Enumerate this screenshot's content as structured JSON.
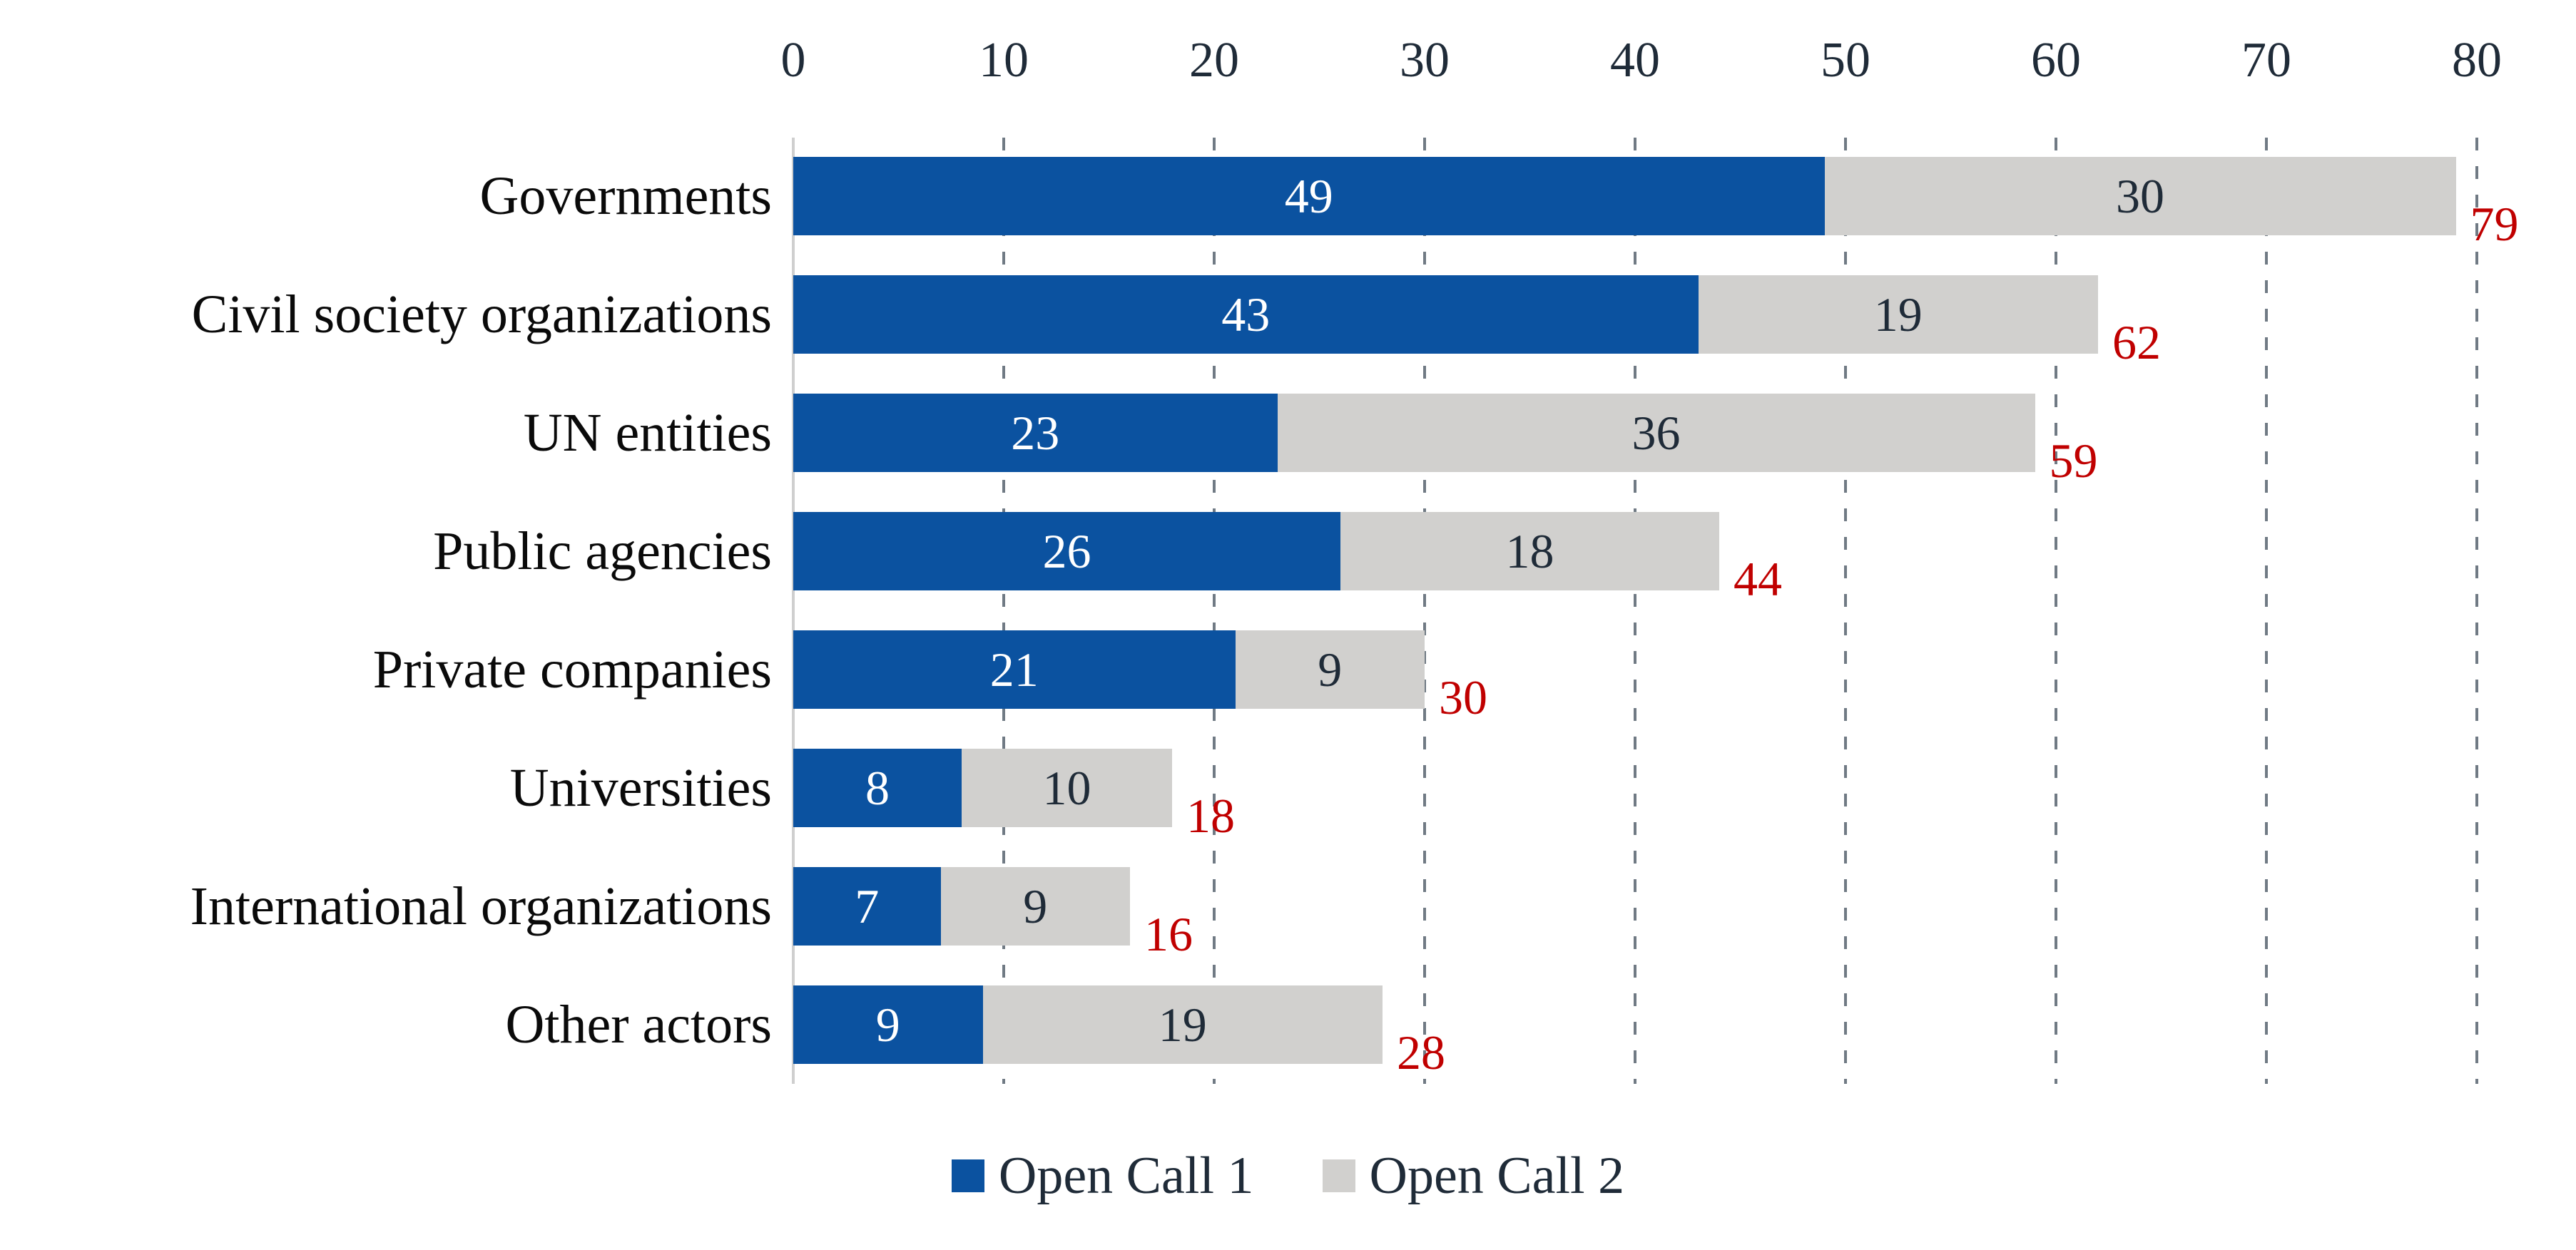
{
  "chart_data": {
    "type": "bar",
    "orientation": "horizontal",
    "stacked": true,
    "title": "",
    "categories": [
      "Governments",
      "Civil society organizations",
      "UN entities",
      "Public agencies",
      "Private companies",
      "Universities",
      "International organizations",
      "Other actors"
    ],
    "series": [
      {
        "name": "Open Call 1",
        "color": "#0B52A0",
        "label_color": "#FFFFFF",
        "values": [
          49,
          43,
          23,
          26,
          21,
          8,
          7,
          9
        ]
      },
      {
        "name": "Open Call 2",
        "color": "#D1D0CE",
        "label_color": "#1F2B38",
        "values": [
          30,
          19,
          36,
          18,
          9,
          10,
          9,
          19
        ]
      }
    ],
    "totals": {
      "values": [
        79,
        62,
        59,
        44,
        30,
        18,
        16,
        28
      ],
      "color": "#C00000"
    },
    "x_axis": {
      "position": "top",
      "min": 0,
      "max": 80,
      "tick_interval": 10,
      "tick_labels": [
        "0",
        "10",
        "20",
        "30",
        "40",
        "50",
        "60",
        "70",
        "80"
      ],
      "tick_color": "#1F2B38"
    },
    "gridlines": {
      "style": "dashed-vertical",
      "color": "#707A84",
      "zero_line_color": "#CFCFCF"
    },
    "legend_position": "bottom"
  }
}
